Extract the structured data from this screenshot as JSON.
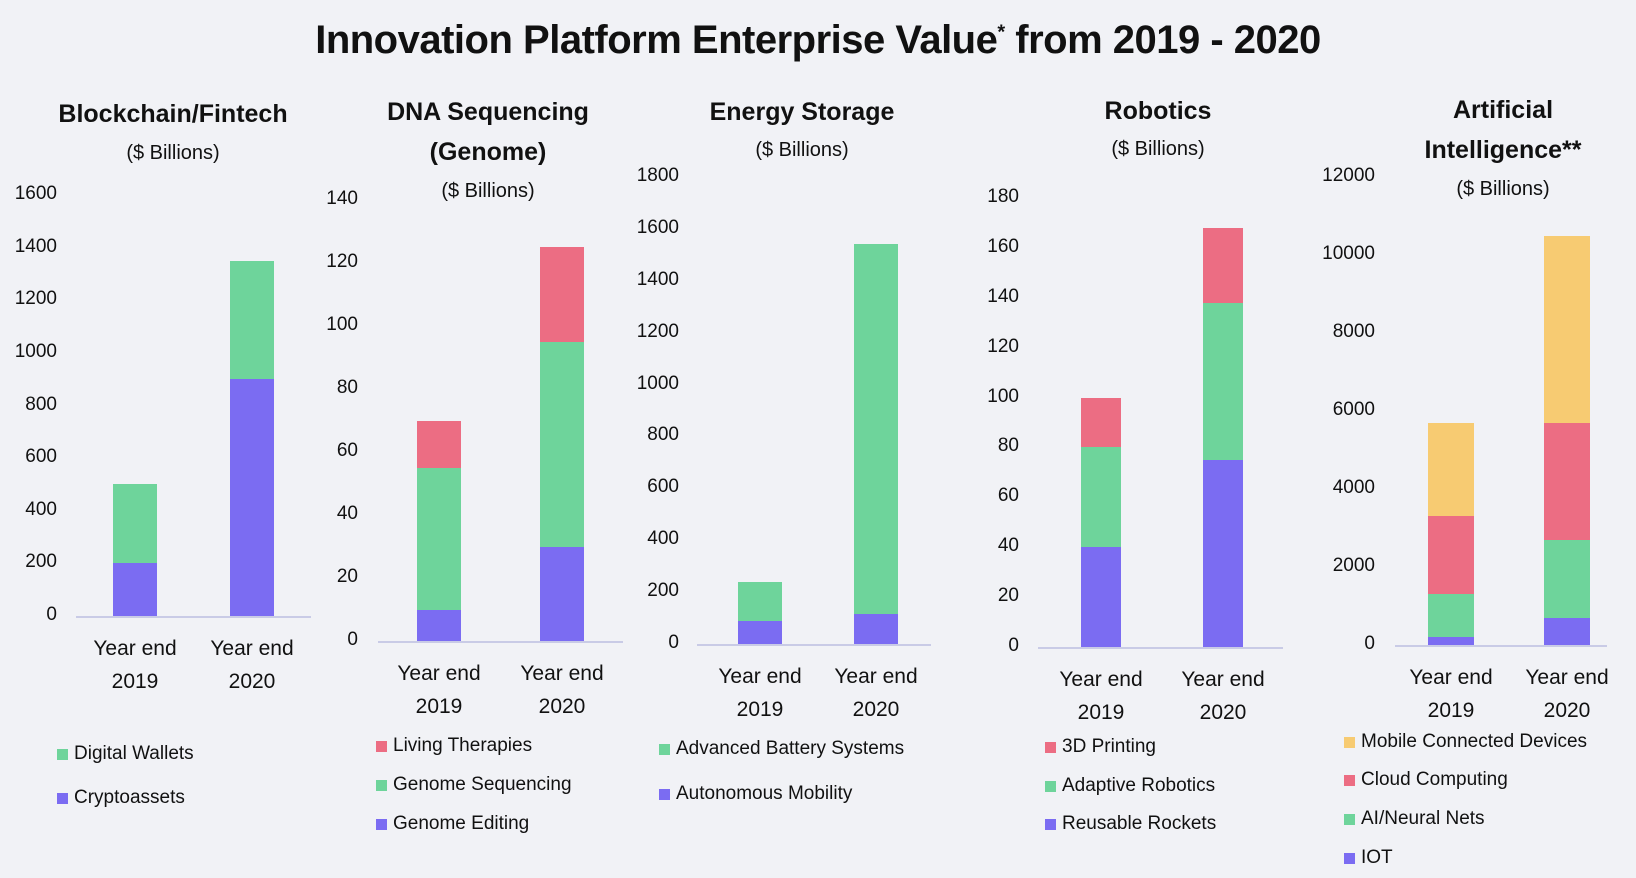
{
  "title": "Innovation Platform Enterprise Value",
  "title_mark": "*",
  "title_suffix": " from 2019 - 2020",
  "chart_data": [
    {
      "type": "bar",
      "stacked": true,
      "title_lines": [
        "Blockchain/Fintech"
      ],
      "subtitle": "($ Billions)",
      "categories": [
        [
          "Year end",
          "2019"
        ],
        [
          "Year end",
          "2020"
        ]
      ],
      "ylim": [
        0,
        1600
      ],
      "yticks": [
        0,
        200,
        400,
        600,
        800,
        1000,
        1200,
        1400,
        1600
      ],
      "series": [
        {
          "name": "Cryptoassets",
          "color": "#7b6cf2",
          "values": [
            200,
            900
          ]
        },
        {
          "name": "Digital Wallets",
          "color": "#6ed49b",
          "values": [
            300,
            450
          ]
        }
      ]
    },
    {
      "type": "bar",
      "stacked": true,
      "title_lines": [
        "DNA Sequencing",
        "(Genome)"
      ],
      "subtitle": "($ Billions)",
      "categories": [
        [
          "Year end",
          "2019"
        ],
        [
          "Year end",
          "2020"
        ]
      ],
      "ylim": [
        0,
        140
      ],
      "yticks": [
        0,
        20,
        40,
        60,
        80,
        100,
        120,
        140
      ],
      "series": [
        {
          "name": "Genome Editing",
          "color": "#7b6cf2",
          "values": [
            10,
            30
          ]
        },
        {
          "name": "Genome Sequencing",
          "color": "#6ed49b",
          "values": [
            45,
            65
          ]
        },
        {
          "name": "Living Therapies",
          "color": "#ec6d83",
          "values": [
            15,
            30
          ]
        }
      ]
    },
    {
      "type": "bar",
      "stacked": true,
      "title_lines": [
        "Energy Storage"
      ],
      "subtitle": "($ Billions)",
      "categories": [
        [
          "Year end",
          "2019"
        ],
        [
          "Year end",
          "2020"
        ]
      ],
      "ylim": [
        0,
        1800
      ],
      "yticks": [
        0,
        200,
        400,
        600,
        800,
        1000,
        1200,
        1400,
        1600,
        1800
      ],
      "series": [
        {
          "name": "Autonomous Mobility",
          "color": "#7b6cf2",
          "values": [
            90,
            115
          ]
        },
        {
          "name": "Advanced Battery Systems",
          "color": "#6ed49b",
          "values": [
            150,
            1425
          ]
        }
      ]
    },
    {
      "type": "bar",
      "stacked": true,
      "title_lines": [
        "Robotics"
      ],
      "subtitle": "($ Billions)",
      "categories": [
        [
          "Year end",
          "2019"
        ],
        [
          "Year end",
          "2020"
        ]
      ],
      "ylim": [
        0,
        180
      ],
      "yticks": [
        0,
        20,
        40,
        60,
        80,
        100,
        120,
        140,
        160,
        180
      ],
      "series": [
        {
          "name": "Reusable Rockets",
          "color": "#7b6cf2",
          "values": [
            40,
            75
          ]
        },
        {
          "name": "Adaptive Robotics",
          "color": "#6ed49b",
          "values": [
            40,
            63
          ]
        },
        {
          "name": "3D Printing",
          "color": "#ec6d83",
          "values": [
            20,
            30
          ]
        }
      ]
    },
    {
      "type": "bar",
      "stacked": true,
      "title_lines": [
        "Artificial",
        "Intelligence**"
      ],
      "subtitle": "($ Billions)",
      "categories": [
        [
          "Year end",
          "2019"
        ],
        [
          "Year end",
          "2020"
        ]
      ],
      "ylim": [
        0,
        12000
      ],
      "yticks": [
        0,
        2000,
        4000,
        6000,
        8000,
        10000,
        12000
      ],
      "series": [
        {
          "name": "IOT",
          "color": "#7b6cf2",
          "values": [
            200,
            700
          ]
        },
        {
          "name": "AI/Neural Nets",
          "color": "#6ed49b",
          "values": [
            1100,
            2000
          ]
        },
        {
          "name": "Cloud Computing",
          "color": "#ec6d83",
          "values": [
            2000,
            3000
          ]
        },
        {
          "name": "Mobile Connected Devices",
          "color": "#f7cb72",
          "values": [
            2400,
            4800
          ]
        }
      ]
    }
  ]
}
